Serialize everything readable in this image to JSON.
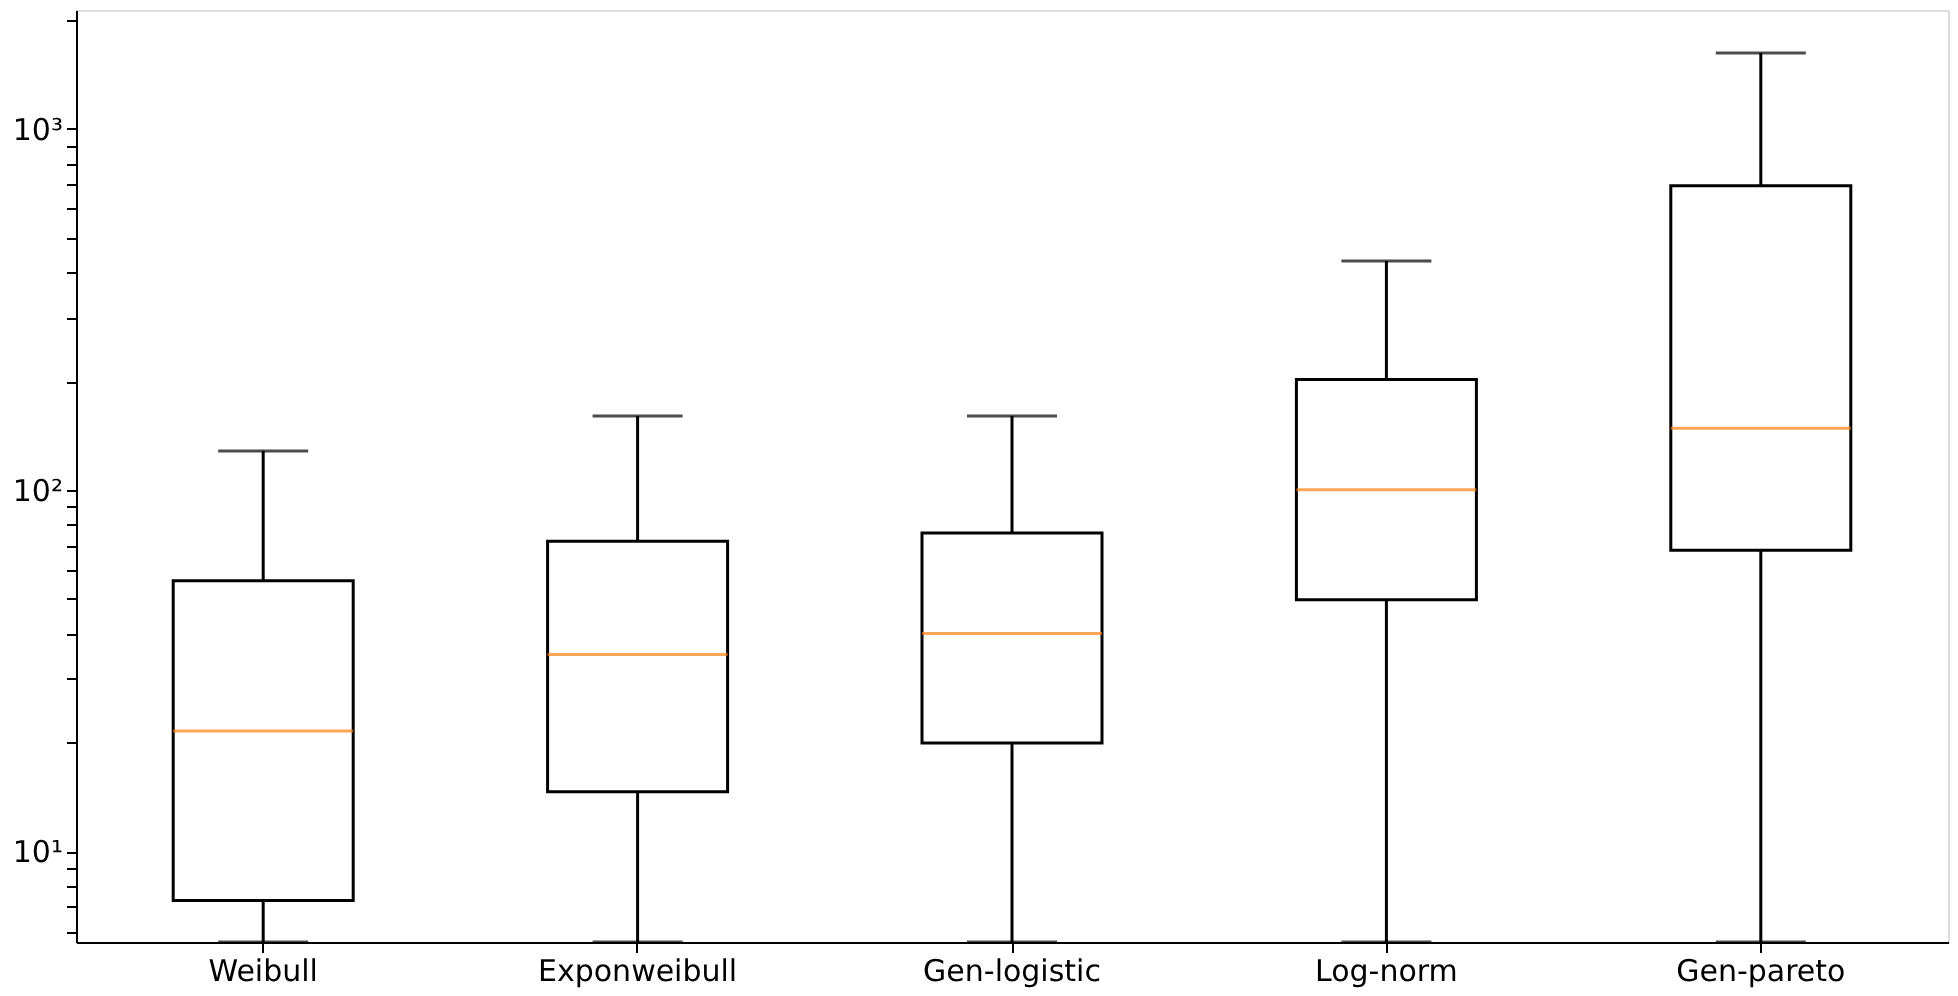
{
  "chart_data": {
    "type": "box",
    "categories": [
      "Weibull",
      "Exponweibull",
      "Gen-logistic",
      "Log-norm",
      "Gen-pareto"
    ],
    "series": [
      {
        "color": "#ff7f0e",
        "boxes": [
          {
            "low": 5.6,
            "q1": 7.3,
            "median": 21.5,
            "q3": 56,
            "high": 128
          },
          {
            "low": 5.6,
            "q1": 14.6,
            "median": 35,
            "q3": 72,
            "high": 160
          },
          {
            "low": 5.6,
            "q1": 19.9,
            "median": 40,
            "q3": 76,
            "high": 160
          },
          {
            "low": 5.6,
            "q1": 49.6,
            "median": 100,
            "q3": 202,
            "high": 430
          },
          {
            "low": 5.6,
            "q1": 68,
            "median": 148,
            "q3": 695,
            "high": 1620
          }
        ]
      }
    ],
    "log": "y",
    "ylim": [
      5.6,
      2130
    ],
    "yticks": [
      {
        "value": 6,
        "label": null
      },
      {
        "value": 7,
        "label": null
      },
      {
        "value": 8,
        "label": null
      },
      {
        "value": 9,
        "label": null
      },
      {
        "value": 10,
        "label": "10¹"
      },
      {
        "value": 20,
        "label": null
      },
      {
        "value": 30,
        "label": null
      },
      {
        "value": 40,
        "label": null
      },
      {
        "value": 50,
        "label": null
      },
      {
        "value": 60,
        "label": null
      },
      {
        "value": 70,
        "label": null
      },
      {
        "value": 80,
        "label": null
      },
      {
        "value": 90,
        "label": null
      },
      {
        "value": 100,
        "label": "10²"
      },
      {
        "value": 200,
        "label": null
      },
      {
        "value": 300,
        "label": null
      },
      {
        "value": 400,
        "label": null
      },
      {
        "value": 500,
        "label": null
      },
      {
        "value": 600,
        "label": null
      },
      {
        "value": 700,
        "label": null
      },
      {
        "value": 800,
        "label": null
      },
      {
        "value": 900,
        "label": null
      },
      {
        "value": 1000,
        "label": "10³"
      },
      {
        "value": 2000,
        "label": null
      }
    ],
    "grid": false
  }
}
